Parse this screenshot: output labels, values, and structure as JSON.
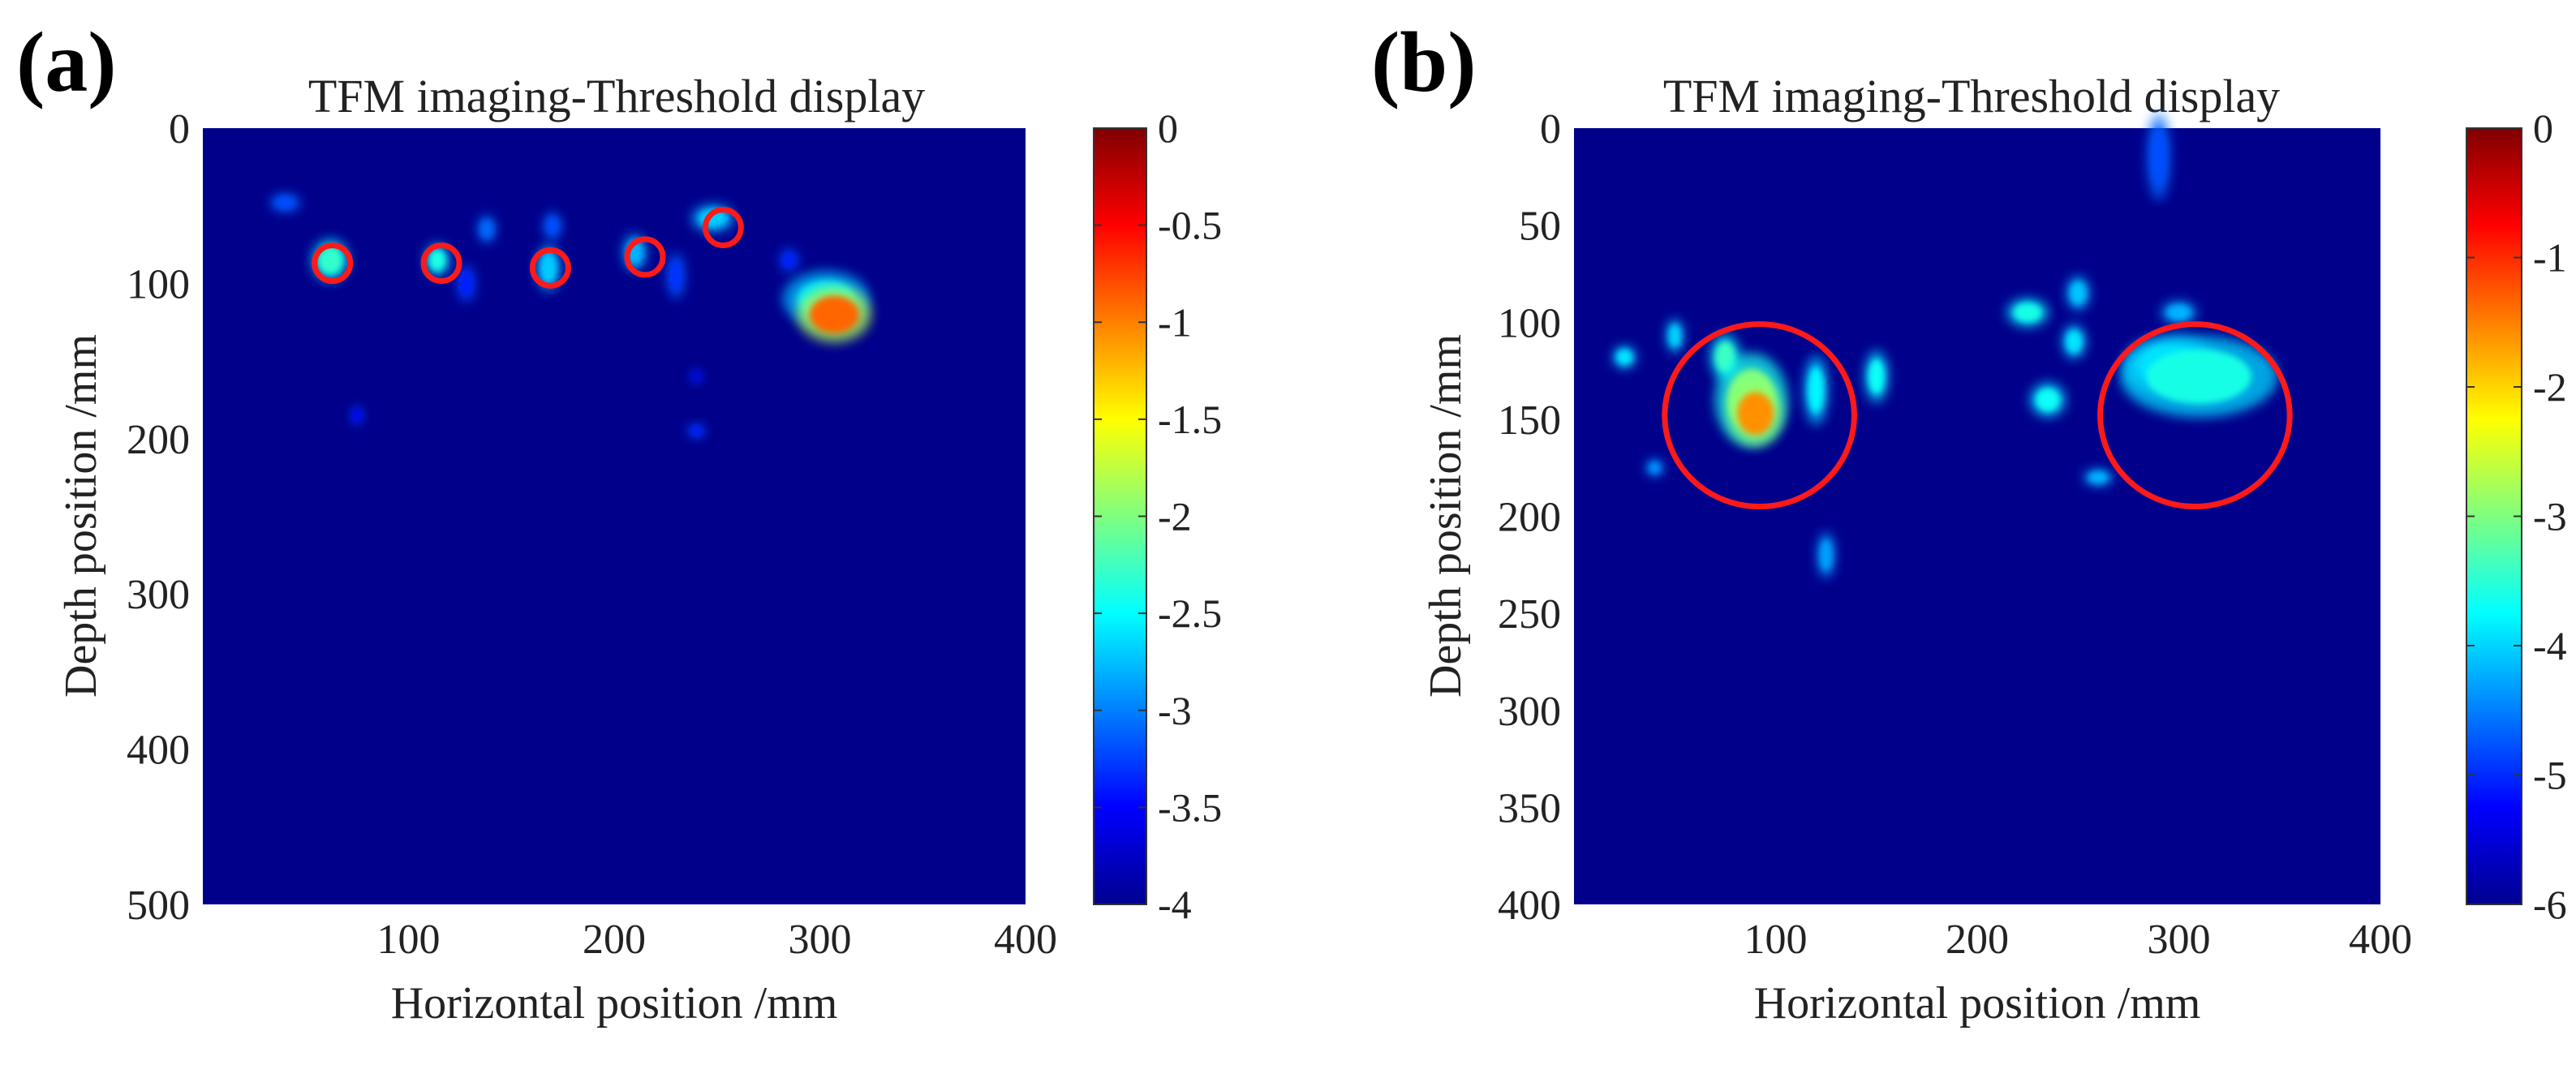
{
  "chart_data": [
    {
      "panel": "(a)",
      "type": "heatmap",
      "title": "TFM imaging-Threshold display",
      "xlabel": "Horizontal position /mm",
      "ylabel": "Depth position /mm",
      "xlim": [
        0,
        400
      ],
      "ylim": [
        0,
        500
      ],
      "x_ticks": [
        100,
        200,
        300,
        400
      ],
      "x_tick_labels": [
        "100",
        "200",
        "300",
        "400"
      ],
      "y_ticks": [
        0,
        100,
        200,
        300,
        400,
        500
      ],
      "y_tick_labels": [
        "0",
        "100",
        "200",
        "300",
        "400",
        "500"
      ],
      "colorbar": {
        "range": [
          -4,
          0
        ],
        "ticks": [
          0,
          -0.5,
          -1,
          -1.5,
          -2,
          -2.5,
          -3,
          -3.5,
          -4
        ],
        "tick_labels": [
          "0",
          "-0.5",
          "-1",
          "-1.5",
          "-2",
          "-2.5",
          "-3",
          "-3.5",
          "-4"
        ]
      },
      "blobs": [
        {
          "x": 307,
          "y": 120,
          "rx": 12,
          "ry": 12,
          "value": -0.9
        },
        {
          "x": 303,
          "y": 110,
          "rx": 14,
          "ry": 12,
          "value": -2.6
        },
        {
          "x": 62,
          "y": 85,
          "rx": 6,
          "ry": 9,
          "value": -2.3
        },
        {
          "x": 114,
          "y": 85,
          "rx": 4,
          "ry": 7,
          "value": -2.4
        },
        {
          "x": 168,
          "y": 90,
          "rx": 4,
          "ry": 10,
          "value": -2.7
        },
        {
          "x": 210,
          "y": 80,
          "rx": 4,
          "ry": 8,
          "value": -2.8
        },
        {
          "x": 248,
          "y": 58,
          "rx": 7,
          "ry": 6,
          "value": -2.7
        },
        {
          "x": 40,
          "y": 48,
          "rx": 5,
          "ry": 4,
          "value": -3.2
        },
        {
          "x": 138,
          "y": 65,
          "rx": 3,
          "ry": 6,
          "value": -3.1
        },
        {
          "x": 170,
          "y": 63,
          "rx": 3,
          "ry": 6,
          "value": -3.2
        },
        {
          "x": 128,
          "y": 100,
          "rx": 3,
          "ry": 8,
          "value": -3.4
        },
        {
          "x": 230,
          "y": 95,
          "rx": 3,
          "ry": 10,
          "value": -3.3
        },
        {
          "x": 285,
          "y": 85,
          "rx": 3,
          "ry": 5,
          "value": -3.4
        },
        {
          "x": 75,
          "y": 185,
          "rx": 2,
          "ry": 4,
          "value": -3.5
        },
        {
          "x": 240,
          "y": 195,
          "rx": 3,
          "ry": 3,
          "value": -3.4
        },
        {
          "x": 240,
          "y": 160,
          "rx": 2,
          "ry": 3,
          "value": -3.6
        }
      ],
      "highlight_circles": [
        {
          "x": 63,
          "y": 87
        },
        {
          "x": 116,
          "y": 87
        },
        {
          "x": 169,
          "y": 90
        },
        {
          "x": 215,
          "y": 83
        },
        {
          "x": 253,
          "y": 64
        }
      ]
    },
    {
      "panel": "(b)",
      "type": "heatmap",
      "title": "TFM imaging-Threshold display",
      "xlabel": "Horizontal position /mm",
      "ylabel": "Depth position /mm",
      "xlim": [
        0,
        400
      ],
      "ylim": [
        0,
        400
      ],
      "x_ticks": [
        100,
        200,
        300,
        400
      ],
      "x_tick_labels": [
        "100",
        "200",
        "300",
        "400"
      ],
      "y_ticks": [
        0,
        50,
        100,
        150,
        200,
        250,
        300,
        350,
        400
      ],
      "y_tick_labels": [
        "0",
        "50",
        "100",
        "150",
        "200",
        "250",
        "300",
        "350",
        "400"
      ],
      "colorbar": {
        "range": [
          -6,
          0
        ],
        "ticks": [
          0,
          -1,
          -2,
          -3,
          -4,
          -5,
          -6
        ],
        "tick_labels": [
          "0",
          "-1",
          "-2",
          "-3",
          "-4",
          "-5",
          "-6"
        ]
      },
      "blobs": [
        {
          "x": 90,
          "y": 147,
          "rx": 9,
          "ry": 11,
          "value": -1.6
        },
        {
          "x": 88,
          "y": 140,
          "rx": 12,
          "ry": 16,
          "value": -3.0
        },
        {
          "x": 310,
          "y": 128,
          "rx": 26,
          "ry": 14,
          "value": -3.6
        },
        {
          "x": 295,
          "y": 122,
          "rx": 15,
          "ry": 10,
          "value": -3.8
        },
        {
          "x": 75,
          "y": 118,
          "rx": 5,
          "ry": 8,
          "value": -3.4
        },
        {
          "x": 120,
          "y": 135,
          "rx": 4,
          "ry": 12,
          "value": -3.8
        },
        {
          "x": 150,
          "y": 128,
          "rx": 4,
          "ry": 9,
          "value": -3.7
        },
        {
          "x": 225,
          "y": 95,
          "rx": 7,
          "ry": 5,
          "value": -3.6
        },
        {
          "x": 235,
          "y": 140,
          "rx": 6,
          "ry": 6,
          "value": -3.7
        },
        {
          "x": 248,
          "y": 110,
          "rx": 4,
          "ry": 6,
          "value": -3.9
        },
        {
          "x": 250,
          "y": 85,
          "rx": 4,
          "ry": 6,
          "value": -4.1
        },
        {
          "x": 25,
          "y": 118,
          "rx": 4,
          "ry": 4,
          "value": -3.9
        },
        {
          "x": 50,
          "y": 107,
          "rx": 3,
          "ry": 6,
          "value": -4.0
        },
        {
          "x": 125,
          "y": 220,
          "rx": 3,
          "ry": 8,
          "value": -4.3
        },
        {
          "x": 260,
          "y": 180,
          "rx": 5,
          "ry": 3,
          "value": -4.2
        },
        {
          "x": 290,
          "y": 15,
          "rx": 4,
          "ry": 15,
          "value": -4.8
        },
        {
          "x": 300,
          "y": 95,
          "rx": 6,
          "ry": 4,
          "value": -4.2
        },
        {
          "x": 40,
          "y": 175,
          "rx": 3,
          "ry": 3,
          "value": -4.4
        }
      ],
      "highlight_circles": [
        {
          "x": 92,
          "y": 148,
          "r": 47
        },
        {
          "x": 308,
          "y": 148,
          "r": 47
        }
      ]
    }
  ]
}
